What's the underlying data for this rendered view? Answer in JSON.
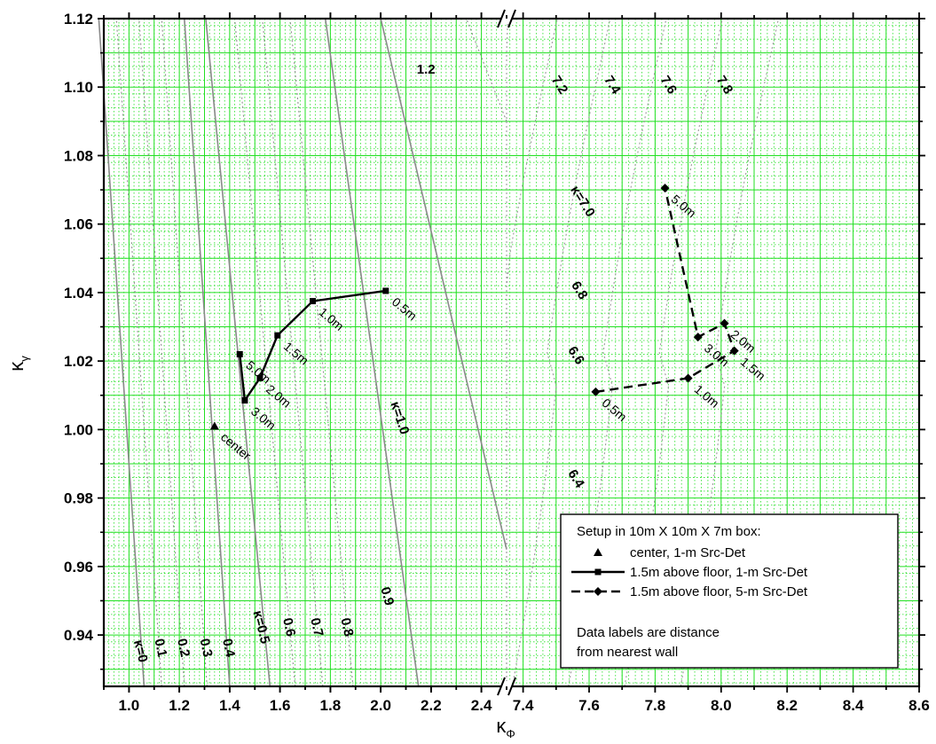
{
  "chart_data": {
    "type": "line",
    "x_axis_label": "κ",
    "x_axis_label_sub": "Φ",
    "y_axis_label": "κ",
    "y_axis_label_sub": "γ",
    "x_axis_broken": true,
    "x_left_range": [
      0.9,
      2.5
    ],
    "x_right_range": [
      7.35,
      8.6
    ],
    "ylim": [
      0.925,
      1.12
    ],
    "x_ticks_left": [
      "1.0",
      "1.2",
      "1.4",
      "1.6",
      "1.8",
      "2.0",
      "2.2",
      "2.4"
    ],
    "x_ticks_right": [
      "7.4",
      "7.6",
      "7.8",
      "8.0",
      "8.2",
      "8.4",
      "8.6"
    ],
    "y_ticks": [
      "0.94",
      "0.96",
      "0.98",
      "1.00",
      "1.02",
      "1.04",
      "1.06",
      "1.08",
      "1.10",
      "1.12"
    ],
    "grid": true,
    "legend_position": "bottom-right",
    "series": [
      {
        "name": "center, 1-m Src-Det",
        "marker": "triangle",
        "line": "none",
        "points": [
          {
            "x": 1.34,
            "y": 1.001,
            "label": "center"
          }
        ]
      },
      {
        "name": "1.5m above floor, 1-m Src-Det",
        "marker": "square",
        "line": "solid",
        "points": [
          {
            "x": 2.02,
            "y": 1.0405,
            "label": "0.5m"
          },
          {
            "x": 1.73,
            "y": 1.0375,
            "label": "1.0m"
          },
          {
            "x": 1.59,
            "y": 1.0275,
            "label": "1.5m"
          },
          {
            "x": 1.52,
            "y": 1.015,
            "label": "2.0m"
          },
          {
            "x": 1.46,
            "y": 1.0085,
            "label": "3.0m"
          },
          {
            "x": 1.44,
            "y": 1.022,
            "label": "5.0m"
          }
        ]
      },
      {
        "name": "1.5m above floor, 5-m Src-Det",
        "marker": "diamond",
        "line": "dashed",
        "points": [
          {
            "x": 7.62,
            "y": 1.011,
            "label": "0.5m"
          },
          {
            "x": 7.9,
            "y": 1.015,
            "label": "1.0m"
          },
          {
            "x": 8.04,
            "y": 1.023,
            "label": "1.5m"
          },
          {
            "x": 8.01,
            "y": 1.031,
            "label": "2.0m"
          },
          {
            "x": 7.93,
            "y": 1.027,
            "label": "3.0m"
          },
          {
            "x": 7.83,
            "y": 1.0705,
            "label": "5.0m"
          }
        ]
      }
    ],
    "contours": [
      {
        "label": "κ=0",
        "style": "solid",
        "bottom": [
          1.06,
          0.925
        ],
        "top": [
          0.88,
          1.12
        ],
        "label_at": [
          1.03,
          0.935
        ],
        "label_angle": -76
      },
      {
        "label": "0.1",
        "style": "dotted",
        "bottom": [
          1.13,
          0.925
        ],
        "top": [
          0.95,
          1.12
        ],
        "label_at": [
          1.11,
          0.936
        ],
        "label_angle": -78
      },
      {
        "label": "0.2",
        "style": "dotted",
        "bottom": [
          1.22,
          0.925
        ],
        "top": [
          1.04,
          1.12
        ],
        "label_at": [
          1.2,
          0.936
        ],
        "label_angle": -78
      },
      {
        "label": "0.3",
        "style": "dotted",
        "bottom": [
          1.31,
          0.925
        ],
        "top": [
          1.13,
          1.12
        ],
        "label_at": [
          1.29,
          0.936
        ],
        "label_angle": -78
      },
      {
        "label": "0.4",
        "style": "solid",
        "bottom": [
          1.4,
          0.925
        ],
        "top": [
          1.22,
          1.12
        ],
        "label_at": [
          1.38,
          0.936
        ],
        "label_angle": -78
      },
      {
        "label": "κ=0.5",
        "style": "solid",
        "bottom": [
          1.56,
          0.925
        ],
        "top": [
          1.305,
          1.12
        ],
        "label_at": [
          1.51,
          0.942
        ],
        "label_angle": -76
      },
      {
        "label": "0.6",
        "style": "dotted",
        "bottom": [
          1.66,
          0.925
        ],
        "top": [
          1.42,
          1.12
        ],
        "label_at": [
          1.62,
          0.942
        ],
        "label_angle": -77
      },
      {
        "label": "0.7",
        "style": "dotted",
        "bottom": [
          1.77,
          0.925
        ],
        "top": [
          1.53,
          1.12
        ],
        "label_at": [
          1.73,
          0.942
        ],
        "label_angle": -77
      },
      {
        "label": "0.8",
        "style": "dotted",
        "bottom": [
          1.89,
          0.925
        ],
        "top": [
          1.64,
          1.12
        ],
        "label_at": [
          1.85,
          0.942
        ],
        "label_angle": -77
      },
      {
        "label": "0.9",
        "style": "solid",
        "bottom": [
          2.15,
          0.925
        ],
        "top": [
          1.78,
          1.12
        ],
        "label_at": [
          2.01,
          0.951
        ],
        "label_angle": -74
      },
      {
        "label": "κ=1.0",
        "style": "solid",
        "bottom": [
          2.5,
          0.965
        ],
        "top": [
          2.0,
          1.12
        ],
        "label_at": [
          2.06,
          1.003
        ],
        "label_angle": -72
      },
      {
        "label": "1.2",
        "style": "dotted",
        "bottom": [
          2.5,
          1.09
        ],
        "top": [
          2.34,
          1.12
        ],
        "label_at": [
          2.18,
          1.104
        ],
        "label_angle": 0
      },
      {
        "label": "6.4",
        "style": "dotted",
        "label_at": [
          7.55,
          0.985
        ],
        "label_angle": -58
      },
      {
        "label": "6.6",
        "style": "dotted",
        "label_at": [
          7.55,
          1.021
        ],
        "label_angle": -58
      },
      {
        "label": "6.8",
        "style": "dotted",
        "label_at": [
          7.56,
          1.04
        ],
        "label_angle": -58
      },
      {
        "label": "κ=7.0",
        "style": "dotted",
        "label_at": [
          7.57,
          1.066
        ],
        "label_angle": -58
      },
      {
        "label": "7.2",
        "style": "dotted",
        "label_at": [
          7.5,
          1.1
        ],
        "label_angle": -58
      },
      {
        "label": "7.4",
        "style": "dotted",
        "label_at": [
          7.66,
          1.1
        ],
        "label_angle": -58
      },
      {
        "label": "7.6",
        "style": "dotted",
        "label_at": [
          7.83,
          1.1
        ],
        "label_angle": -58
      },
      {
        "label": "7.8",
        "style": "dotted",
        "label_at": [
          8.0,
          1.1
        ],
        "label_angle": -58
      }
    ],
    "legend": {
      "title": "Setup in 10m X 10m X 7m box:",
      "entries": [
        {
          "marker": "triangle",
          "line": "none",
          "text": "center, 1-m Src-Det"
        },
        {
          "marker": "square",
          "line": "solid",
          "text": "1.5m above floor, 1-m Src-Det"
        },
        {
          "marker": "diamond",
          "line": "dashed",
          "text": "1.5m above floor, 5-m Src-Det"
        }
      ],
      "notes": [
        "Data labels are distance",
        "from nearest wall"
      ]
    }
  }
}
